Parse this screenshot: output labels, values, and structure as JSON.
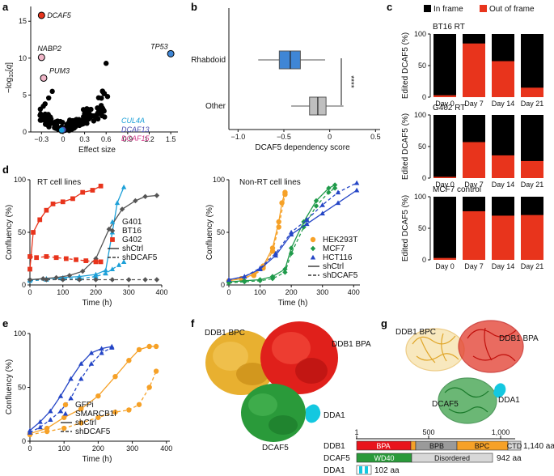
{
  "panels": {
    "a": "a",
    "b": "b",
    "c": "c",
    "d": "d",
    "e": "e",
    "f": "f",
    "g": "g"
  },
  "colors": {
    "red": "#e8341c",
    "black": "#000000",
    "blue": "#3f86d6",
    "grey": "#bfbfbf",
    "orange": "#f6a127",
    "green": "#1f9a4a",
    "navy": "#2546c6",
    "cyan": "#18c5d8",
    "purple": "#4b4fb0",
    "pink": "#d33a8a",
    "lightblue": "#1da0d8"
  },
  "chart_data": [
    {
      "id": "a",
      "type": "scatter",
      "xlabel": "Effect size",
      "ylabel": "−log10[q]",
      "xlim": [
        -0.45,
        1.6
      ],
      "ylim": [
        0,
        17
      ],
      "xticks": [
        "−0.3",
        "0",
        "0.3",
        "0.6",
        "0.9",
        "1.2",
        "1.5"
      ],
      "yticks": [
        "0",
        "5",
        "10",
        "15"
      ],
      "highlighted": [
        {
          "name": "DCAF5",
          "x": -0.3,
          "y": 15.8,
          "color": "#e8341c"
        },
        {
          "name": "NABP2",
          "x": -0.3,
          "y": 10.1,
          "color": "#f0b6c8"
        },
        {
          "name": "PUM3",
          "x": -0.27,
          "y": 7.3,
          "color": "#f0b6c8"
        },
        {
          "name": "TP53",
          "x": 1.5,
          "y": 10.6,
          "color": "#3f86d6"
        }
      ],
      "legend": [
        {
          "name": "CUL4A",
          "color": "#1da0d8"
        },
        {
          "name": "DCAF13",
          "color": "#4b4fb0"
        },
        {
          "name": "DCAF15",
          "color": "#d33a8a"
        }
      ]
    },
    {
      "id": "b",
      "type": "boxplot",
      "xlabel": "DCAF5 dependency score",
      "xlim": [
        -1.1,
        0.55
      ],
      "xticks": [
        "−1.0",
        "−0.5",
        "0",
        "0.5"
      ],
      "categories": [
        "Rhabdoid",
        "Other"
      ],
      "boxes": [
        {
          "name": "Rhabdoid",
          "min": -0.78,
          "q1": -0.55,
          "median": -0.43,
          "q3": -0.32,
          "max": -0.05,
          "color": "#3f86d6"
        },
        {
          "name": "Other",
          "min": -0.42,
          "q1": -0.22,
          "median": -0.13,
          "q3": -0.04,
          "max": 0.15,
          "color": "#bfbfbf"
        }
      ],
      "significance": "****"
    },
    {
      "id": "c",
      "type": "stacked-bar",
      "legend": [
        "In frame",
        "Out of frame"
      ],
      "ylabel": "Edited DCAF5 (%)",
      "categories": [
        "Day 0",
        "Day 7",
        "Day 14",
        "Day 21"
      ],
      "yticks": [
        "0",
        "50",
        "100"
      ],
      "groups": [
        {
          "title": "BT16 RT",
          "out_of_frame": [
            3,
            85,
            57,
            15
          ]
        },
        {
          "title": "G402 RT",
          "out_of_frame": [
            2,
            57,
            36,
            27
          ]
        },
        {
          "title": "MCF7 control",
          "out_of_frame": [
            3,
            77,
            70,
            71
          ]
        }
      ]
    },
    {
      "id": "d-left",
      "type": "line",
      "title": "RT cell lines",
      "xlabel": "Time (h)",
      "ylabel": "Confluency (%)",
      "xlim": [
        0,
        400
      ],
      "ylim": [
        0,
        100
      ],
      "xticks": [
        "0",
        "100",
        "200",
        "300",
        "400"
      ],
      "yticks": [
        "0",
        "50",
        "100"
      ],
      "legend": [
        "G401",
        "BT16",
        "G402",
        "shCtrl",
        "shDCAF5"
      ],
      "series": [
        {
          "name": "G401 shCtrl",
          "color": "#1da0d8",
          "dash": false,
          "x": [
            0,
            50,
            100,
            150,
            200,
            230,
            250,
            265,
            285
          ],
          "y": [
            5,
            6,
            7,
            8,
            10,
            14,
            50,
            78,
            93
          ]
        },
        {
          "name": "G401 shDCAF5",
          "color": "#1da0d8",
          "dash": true,
          "x": [
            0,
            50,
            100,
            150,
            200,
            230,
            250,
            270,
            285
          ],
          "y": [
            4,
            5,
            6,
            6,
            8,
            11,
            15,
            19,
            22
          ]
        },
        {
          "name": "BT16 shCtrl",
          "color": "#555555",
          "dash": false,
          "x": [
            0,
            40,
            80,
            120,
            160,
            200,
            240,
            280,
            320,
            350,
            385
          ],
          "y": [
            5,
            6,
            7,
            9,
            13,
            25,
            53,
            72,
            80,
            84,
            85
          ]
        },
        {
          "name": "BT16 shDCAF5",
          "color": "#555555",
          "dash": true,
          "x": [
            0,
            50,
            100,
            150,
            200,
            250,
            300,
            350,
            385
          ],
          "y": [
            5,
            5,
            5,
            5,
            5,
            5,
            5,
            5,
            5
          ]
        },
        {
          "name": "G402 shCtrl",
          "color": "#e8341c",
          "dash": false,
          "x": [
            0,
            10,
            30,
            50,
            70,
            100,
            130,
            160,
            190,
            215
          ],
          "y": [
            15,
            50,
            62,
            71,
            77,
            79,
            82,
            88,
            90,
            94
          ]
        },
        {
          "name": "G402 shDCAF5",
          "color": "#e8341c",
          "dash": true,
          "x": [
            0,
            20,
            50,
            80,
            110,
            140,
            170,
            200,
            215
          ],
          "y": [
            27,
            26,
            27,
            26,
            25,
            24,
            23,
            22,
            22
          ]
        }
      ]
    },
    {
      "id": "d-right",
      "type": "line",
      "title": "Non-RT cell lines",
      "xlabel": "Time (h)",
      "ylabel": "Confluency (%)",
      "xlim": [
        0,
        420
      ],
      "ylim": [
        0,
        100
      ],
      "xticks": [
        "0",
        "100",
        "200",
        "300",
        "400"
      ],
      "yticks": [
        "0",
        "50",
        "100"
      ],
      "legend": [
        "HEK293T",
        "MCF7",
        "HCT116",
        "shCtrl",
        "shDCAF5"
      ],
      "series": [
        {
          "name": "HEK293T shCtrl",
          "color": "#f6a127",
          "dash": false,
          "x": [
            0,
            40,
            80,
            110,
            140,
            160,
            170,
            180
          ],
          "y": [
            4,
            6,
            10,
            18,
            35,
            60,
            78,
            88
          ]
        },
        {
          "name": "HEK293T shDCAF5",
          "color": "#f6a127",
          "dash": true,
          "x": [
            0,
            40,
            80,
            110,
            140,
            160,
            180
          ],
          "y": [
            4,
            6,
            9,
            16,
            32,
            55,
            86
          ]
        },
        {
          "name": "MCF7 shCtrl",
          "color": "#1f9a4a",
          "dash": false,
          "x": [
            0,
            50,
            100,
            140,
            180,
            200,
            240,
            280,
            320,
            340
          ],
          "y": [
            3,
            4,
            5,
            8,
            15,
            35,
            60,
            80,
            92,
            95
          ]
        },
        {
          "name": "MCF7 shDCAF5",
          "color": "#1f9a4a",
          "dash": true,
          "x": [
            0,
            50,
            100,
            140,
            180,
            200,
            240,
            280,
            320,
            340
          ],
          "y": [
            2,
            3,
            4,
            6,
            12,
            30,
            55,
            75,
            88,
            92
          ]
        },
        {
          "name": "HCT116 shCtrl",
          "color": "#2546c6",
          "dash": false,
          "x": [
            0,
            50,
            100,
            150,
            200,
            250,
            300,
            350,
            410
          ],
          "y": [
            5,
            8,
            15,
            28,
            48,
            58,
            68,
            78,
            90
          ]
        },
        {
          "name": "HCT116 shDCAF5",
          "color": "#2546c6",
          "dash": true,
          "x": [
            0,
            50,
            100,
            150,
            200,
            250,
            300,
            350,
            410
          ],
          "y": [
            5,
            8,
            16,
            30,
            50,
            62,
            76,
            88,
            97
          ]
        }
      ]
    },
    {
      "id": "e",
      "type": "line",
      "xlabel": "Time (h)",
      "ylabel": "Confluency (%)",
      "xlim": [
        0,
        410
      ],
      "ylim": [
        0,
        100
      ],
      "xticks": [
        "0",
        "100",
        "200",
        "300",
        "400"
      ],
      "yticks": [
        "0",
        "50",
        "100"
      ],
      "legend": [
        "GFPi",
        "SMARCB1i",
        "shCtrl",
        "shDCAF5"
      ],
      "series": [
        {
          "name": "GFPi shCtrl",
          "color": "#f6a127",
          "dash": false,
          "x": [
            0,
            50,
            100,
            150,
            200,
            250,
            290,
            320,
            350,
            370
          ],
          "y": [
            7,
            12,
            22,
            30,
            42,
            60,
            75,
            85,
            88,
            88
          ]
        },
        {
          "name": "GFPi shDCAF5",
          "color": "#f6a127",
          "dash": true,
          "x": [
            0,
            50,
            100,
            150,
            200,
            250,
            290,
            320,
            350,
            370
          ],
          "y": [
            6,
            9,
            12,
            17,
            22,
            27,
            29,
            34,
            50,
            65
          ]
        },
        {
          "name": "SMARCB1i shCtrl",
          "color": "#2546c6",
          "dash": false,
          "x": [
            0,
            30,
            60,
            90,
            120,
            150,
            180,
            210,
            240
          ],
          "y": [
            10,
            18,
            28,
            42,
            58,
            72,
            82,
            86,
            88
          ]
        },
        {
          "name": "SMARCB1i shDCAF5",
          "color": "#2546c6",
          "dash": true,
          "x": [
            0,
            30,
            60,
            90,
            120,
            150,
            180,
            210,
            240
          ],
          "y": [
            8,
            13,
            20,
            28,
            40,
            58,
            72,
            82,
            87
          ]
        }
      ]
    }
  ],
  "f": {
    "labels": [
      "DDB1 BPC",
      "DDB1 BPA",
      "DDA1",
      "DCAF5"
    ]
  },
  "g": {
    "labels": [
      "DDB1 BPC",
      "DDB1 BPA",
      "DCAF5",
      "DDA1"
    ]
  },
  "domains": {
    "scale_ticks": [
      "1",
      "500",
      "1,000"
    ],
    "rows": [
      {
        "name": "DDB1",
        "length": "1,140 aa",
        "segments": [
          "BPA",
          "BPB",
          "BPC",
          "CTD"
        ]
      },
      {
        "name": "DCAF5",
        "length": "942 aa",
        "segments": [
          "WD40",
          "Disordered"
        ]
      },
      {
        "name": "DDA1",
        "length": "102 aa",
        "segments": []
      }
    ]
  },
  "legend_styles": {
    "solid_label": "shCtrl",
    "dashed_label": "shDCAF5"
  }
}
